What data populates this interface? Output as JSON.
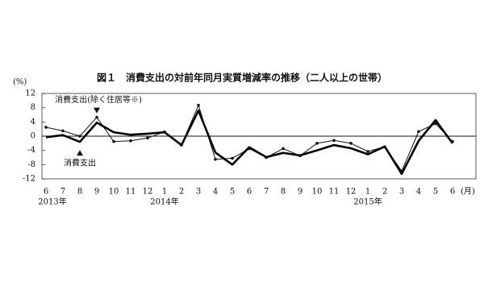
{
  "chart_data": {
    "type": "line",
    "title": "図１　消費支出の対前年同月実質増減率の推移（二人以上の世帯）",
    "y_unit": "(%)",
    "x_unit": "(月)",
    "categories": [
      "6",
      "7",
      "8",
      "9",
      "10",
      "11",
      "12",
      "1",
      "2",
      "3",
      "4",
      "5",
      "6",
      "7",
      "8",
      "9",
      "10",
      "11",
      "12",
      "1",
      "2",
      "3",
      "4",
      "5",
      "6"
    ],
    "category_years": [
      "2013年",
      null,
      null,
      null,
      null,
      null,
      null,
      "2014年",
      null,
      null,
      null,
      null,
      null,
      null,
      null,
      null,
      null,
      null,
      null,
      "2015年",
      null,
      null,
      null,
      null,
      null
    ],
    "ylim": [
      -12,
      12
    ],
    "yticks": [
      12,
      8,
      4,
      0,
      -4,
      -8,
      -12
    ],
    "series": [
      {
        "name": "消費支出(除く住居等※)",
        "color": "#111111",
        "markers": true,
        "values": [
          2.5,
          1.5,
          0.0,
          5.3,
          -1.5,
          -1.3,
          -0.5,
          1.2,
          -2.5,
          8.7,
          -6.5,
          -6.2,
          -3.5,
          -6.0,
          -3.5,
          -5.5,
          -2.0,
          -1.2,
          -2.0,
          -4.3,
          -3.0,
          -9.8,
          1.3,
          3.5,
          -1.5
        ]
      },
      {
        "name": "消費支出",
        "color": "#000000",
        "markers": false,
        "values": [
          -0.3,
          0.3,
          -1.6,
          3.8,
          1.1,
          0.4,
          0.7,
          1.1,
          -2.5,
          7.2,
          -4.6,
          -8.0,
          -3.1,
          -5.9,
          -4.7,
          -5.4,
          -4.0,
          -2.5,
          -3.4,
          -5.1,
          -2.9,
          -10.6,
          -1.3,
          4.5,
          -2.0
        ]
      }
    ]
  }
}
